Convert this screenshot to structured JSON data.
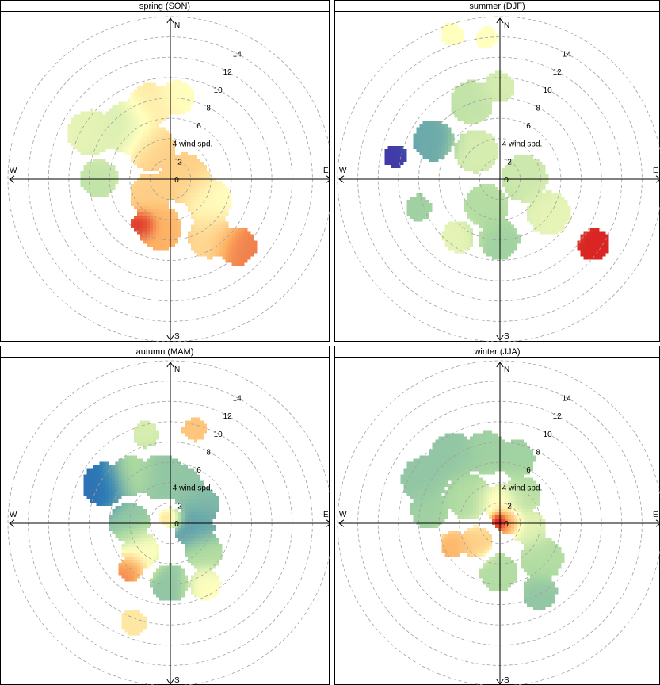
{
  "chart_data": [
    {
      "type": "heatmap",
      "subtype": "polar-plot",
      "title": "spring (SON)",
      "radial_label": "wind spd.",
      "radial_ticks": [
        0,
        2,
        4,
        6,
        8,
        10,
        12,
        14
      ],
      "radial_max": 16,
      "directions": [
        "N",
        "E",
        "S",
        "W"
      ],
      "blobs": [
        {
          "dir": 300,
          "speed": 9.0,
          "radius": 3.2,
          "level": 0.45
        },
        {
          "dir": 320,
          "speed": 6.5,
          "radius": 3.6,
          "level": 0.42
        },
        {
          "dir": 345,
          "speed": 7.5,
          "radius": 3.0,
          "level": 0.55
        },
        {
          "dir": 5,
          "speed": 8.0,
          "radius": 2.4,
          "level": 0.5
        },
        {
          "dir": 270,
          "speed": 7.0,
          "radius": 2.6,
          "level": 0.38
        },
        {
          "dir": 330,
          "speed": 3.5,
          "radius": 3.2,
          "level": 0.6
        },
        {
          "dir": 90,
          "speed": 1.5,
          "radius": 3.4,
          "level": 0.6
        },
        {
          "dir": 120,
          "speed": 4.5,
          "radius": 3.2,
          "level": 0.5
        },
        {
          "dir": 145,
          "speed": 7.0,
          "radius": 3.0,
          "level": 0.58
        },
        {
          "dir": 135,
          "speed": 9.5,
          "radius": 2.6,
          "level": 0.72
        },
        {
          "dir": 190,
          "speed": 5.0,
          "radius": 3.0,
          "level": 0.66
        },
        {
          "dir": 210,
          "speed": 5.2,
          "radius": 1.6,
          "level": 0.85
        },
        {
          "dir": 230,
          "speed": 2.5,
          "radius": 2.8,
          "level": 0.6
        }
      ]
    },
    {
      "type": "heatmap",
      "subtype": "polar-plot",
      "title": "summer (DJF)",
      "radial_label": "wind spd.",
      "radial_ticks": [
        0,
        2,
        4,
        6,
        8,
        10,
        12,
        14
      ],
      "radial_max": 16,
      "directions": [
        "N",
        "E",
        "S",
        "W"
      ],
      "blobs": [
        {
          "dir": 342,
          "speed": 15.0,
          "radius": 1.6,
          "level": 0.5
        },
        {
          "dir": 355,
          "speed": 14.0,
          "radius": 1.5,
          "level": 0.5
        },
        {
          "dir": 340,
          "speed": 8.0,
          "radius": 3.0,
          "level": 0.38
        },
        {
          "dir": 0,
          "speed": 9.0,
          "radius": 2.2,
          "level": 0.42
        },
        {
          "dir": 300,
          "speed": 7.5,
          "radius": 2.8,
          "level": 0.25
        },
        {
          "dir": 282,
          "speed": 10.5,
          "radius": 1.6,
          "level": 0.05
        },
        {
          "dir": 250,
          "speed": 8.5,
          "radius": 1.8,
          "level": 0.32
        },
        {
          "dir": 320,
          "speed": 3.5,
          "radius": 3.0,
          "level": 0.42
        },
        {
          "dir": 90,
          "speed": 2.5,
          "radius": 3.2,
          "level": 0.4
        },
        {
          "dir": 125,
          "speed": 6.0,
          "radius": 3.0,
          "level": 0.45
        },
        {
          "dir": 125,
          "speed": 11.5,
          "radius": 2.2,
          "level": 0.82
        },
        {
          "dir": 180,
          "speed": 6.0,
          "radius": 2.8,
          "level": 0.32
        },
        {
          "dir": 215,
          "speed": 7.0,
          "radius": 2.2,
          "level": 0.45
        },
        {
          "dir": 205,
          "speed": 3.0,
          "radius": 3.0,
          "level": 0.35
        }
      ]
    },
    {
      "type": "heatmap",
      "subtype": "polar-plot",
      "title": "autumn (MAM)",
      "radial_label": "wind spd.",
      "radial_ticks": [
        0,
        2,
        4,
        6,
        8,
        10,
        12,
        14
      ],
      "radial_max": 16,
      "directions": [
        "N",
        "E",
        "S",
        "W"
      ],
      "blobs": [
        {
          "dir": 15,
          "speed": 9.5,
          "radius": 1.6,
          "level": 0.62
        },
        {
          "dir": 345,
          "speed": 9.0,
          "radius": 1.8,
          "level": 0.42
        },
        {
          "dir": 300,
          "speed": 7.5,
          "radius": 3.0,
          "level": 0.15
        },
        {
          "dir": 320,
          "speed": 6.0,
          "radius": 2.8,
          "level": 0.35
        },
        {
          "dir": 350,
          "speed": 4.5,
          "radius": 3.2,
          "level": 0.3
        },
        {
          "dir": 20,
          "speed": 4.0,
          "radius": 2.6,
          "level": 0.3
        },
        {
          "dir": 270,
          "speed": 4.0,
          "radius": 2.8,
          "level": 0.3
        },
        {
          "dir": 60,
          "speed": 3.5,
          "radius": 2.6,
          "level": 0.28
        },
        {
          "dir": 100,
          "speed": 2.5,
          "radius": 2.8,
          "level": 0.22
        },
        {
          "dir": 130,
          "speed": 4.5,
          "radius": 2.6,
          "level": 0.35
        },
        {
          "dir": 225,
          "speed": 4.0,
          "radius": 2.6,
          "level": 0.5
        },
        {
          "dir": 220,
          "speed": 6.0,
          "radius": 1.8,
          "level": 0.72
        },
        {
          "dir": 180,
          "speed": 6.0,
          "radius": 2.6,
          "level": 0.3
        },
        {
          "dir": 150,
          "speed": 7.0,
          "radius": 2.2,
          "level": 0.5
        },
        {
          "dir": 200,
          "speed": 10.5,
          "radius": 1.8,
          "level": 0.55
        },
        {
          "dir": 0,
          "speed": 0.5,
          "radius": 1.4,
          "level": 0.6
        }
      ]
    },
    {
      "type": "heatmap",
      "subtype": "polar-plot",
      "title": "winter (JJA)",
      "radial_label": "wind spd.",
      "radial_ticks": [
        0,
        2,
        4,
        6,
        8,
        10,
        12,
        14
      ],
      "radial_max": 16,
      "directions": [
        "N",
        "E",
        "S",
        "W"
      ],
      "blobs": [
        {
          "dir": 300,
          "speed": 8.5,
          "radius": 3.2,
          "level": 0.3
        },
        {
          "dir": 325,
          "speed": 8.0,
          "radius": 3.2,
          "level": 0.3
        },
        {
          "dir": 350,
          "speed": 7.0,
          "radius": 3.0,
          "level": 0.32
        },
        {
          "dir": 15,
          "speed": 6.5,
          "radius": 2.6,
          "level": 0.32
        },
        {
          "dir": 280,
          "speed": 7.0,
          "radius": 2.6,
          "level": 0.32
        },
        {
          "dir": 310,
          "speed": 4.0,
          "radius": 3.2,
          "level": 0.35
        },
        {
          "dir": 40,
          "speed": 3.5,
          "radius": 2.6,
          "level": 0.36
        },
        {
          "dir": 100,
          "speed": 3.0,
          "radius": 2.4,
          "level": 0.45
        },
        {
          "dir": 130,
          "speed": 5.5,
          "radius": 3.0,
          "level": 0.35
        },
        {
          "dir": 150,
          "speed": 8.0,
          "radius": 2.4,
          "level": 0.3
        },
        {
          "dir": 180,
          "speed": 5.0,
          "radius": 2.6,
          "level": 0.35
        },
        {
          "dir": 230,
          "speed": 3.0,
          "radius": 2.2,
          "level": 0.6
        },
        {
          "dir": 245,
          "speed": 5.0,
          "radius": 1.8,
          "level": 0.65
        },
        {
          "dir": 0,
          "speed": 2.0,
          "radius": 2.4,
          "level": 0.55
        },
        {
          "dir": 90,
          "speed": 0.8,
          "radius": 1.6,
          "level": 0.75
        },
        {
          "dir": 0,
          "speed": 0.2,
          "radius": 0.9,
          "level": 0.97
        }
      ]
    }
  ],
  "colors": {
    "scale": [
      "#4b1fa0",
      "#2c7bb6",
      "#abd9a0",
      "#ffffbf",
      "#fdae61",
      "#d7191c",
      "#b00020"
    ],
    "axis": "#000000",
    "grid": "#a0a0a0",
    "panel_border": "#000000"
  }
}
